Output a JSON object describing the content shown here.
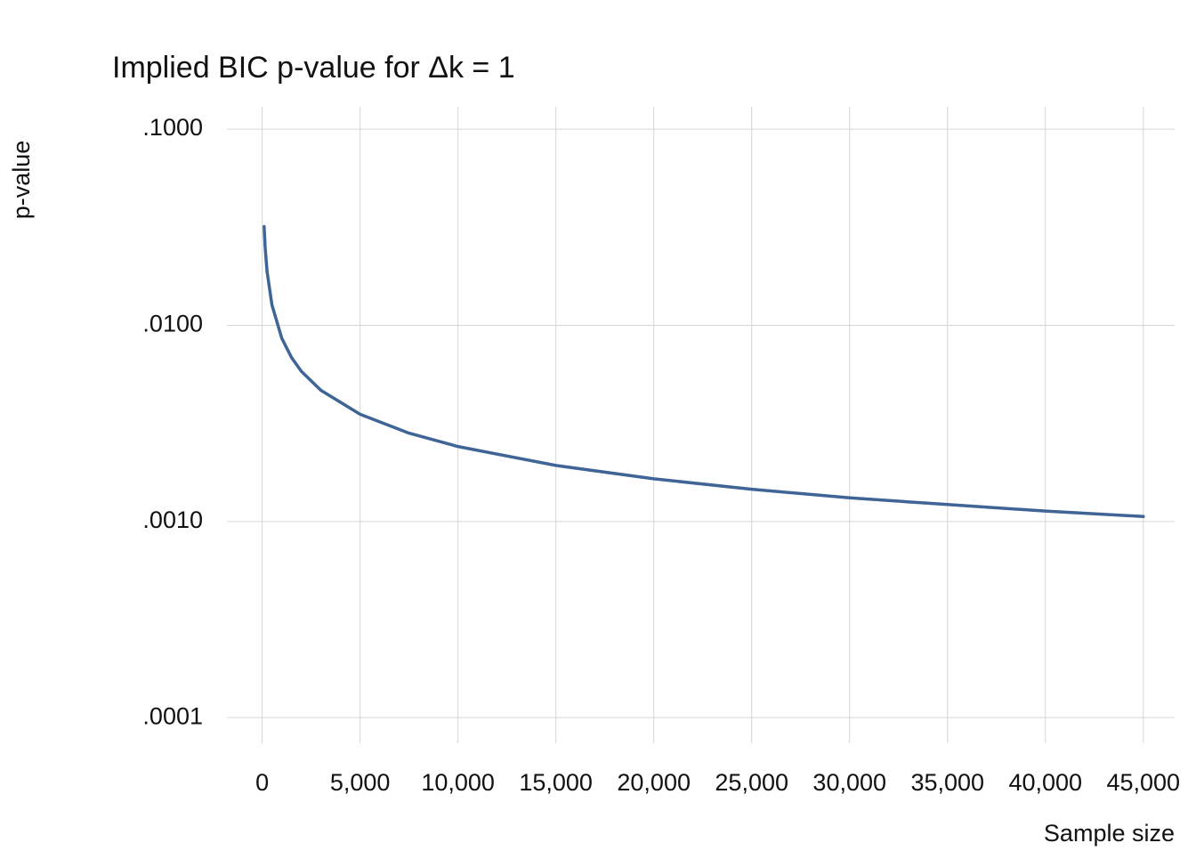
{
  "chart_data": {
    "type": "line",
    "title": "Implied BIC p-value for Δk = 1",
    "x_label": "Sample size",
    "y_label": "p-value",
    "yscale": "log",
    "grid": true,
    "x": [
      100,
      150,
      250,
      500,
      1000,
      1500,
      2000,
      3000,
      5000,
      7500,
      10000,
      15000,
      20000,
      25000,
      30000,
      35000,
      40000,
      45000
    ],
    "series": [
      {
        "color": "#3f6496",
        "values": [
          0.0319,
          0.0252,
          0.0188,
          0.0127,
          0.0086,
          0.00685,
          0.00583,
          0.00466,
          0.00352,
          0.00282,
          0.00241,
          0.00193,
          0.00165,
          0.00146,
          0.00132,
          0.00122,
          0.00113,
          0.00106
        ]
      }
    ],
    "xlim": [
      -1800,
      46600
    ],
    "ylim": [
      7.4e-05,
      0.13
    ],
    "xticks": [
      0,
      {
        "value": 5000,
        "label": "5,000"
      },
      {
        "value": 10000,
        "label": "10,000"
      },
      {
        "value": 15000,
        "label": "15,000"
      },
      {
        "value": 20000,
        "label": "20,000"
      },
      {
        "value": 25000,
        "label": "25,000"
      },
      {
        "value": 30000,
        "label": "30,000"
      },
      {
        "value": 35000,
        "label": "35,000"
      },
      {
        "value": 40000,
        "label": "40,000"
      },
      {
        "value": 45000,
        "label": "45,000"
      }
    ],
    "yticks": [
      {
        "value": 0.1,
        "label": ".1000"
      },
      {
        "value": 0.01,
        "label": ".0100"
      },
      {
        "value": 0.001,
        "label": ".0010"
      },
      {
        "value": 0.0001,
        "label": ".0001"
      }
    ]
  }
}
